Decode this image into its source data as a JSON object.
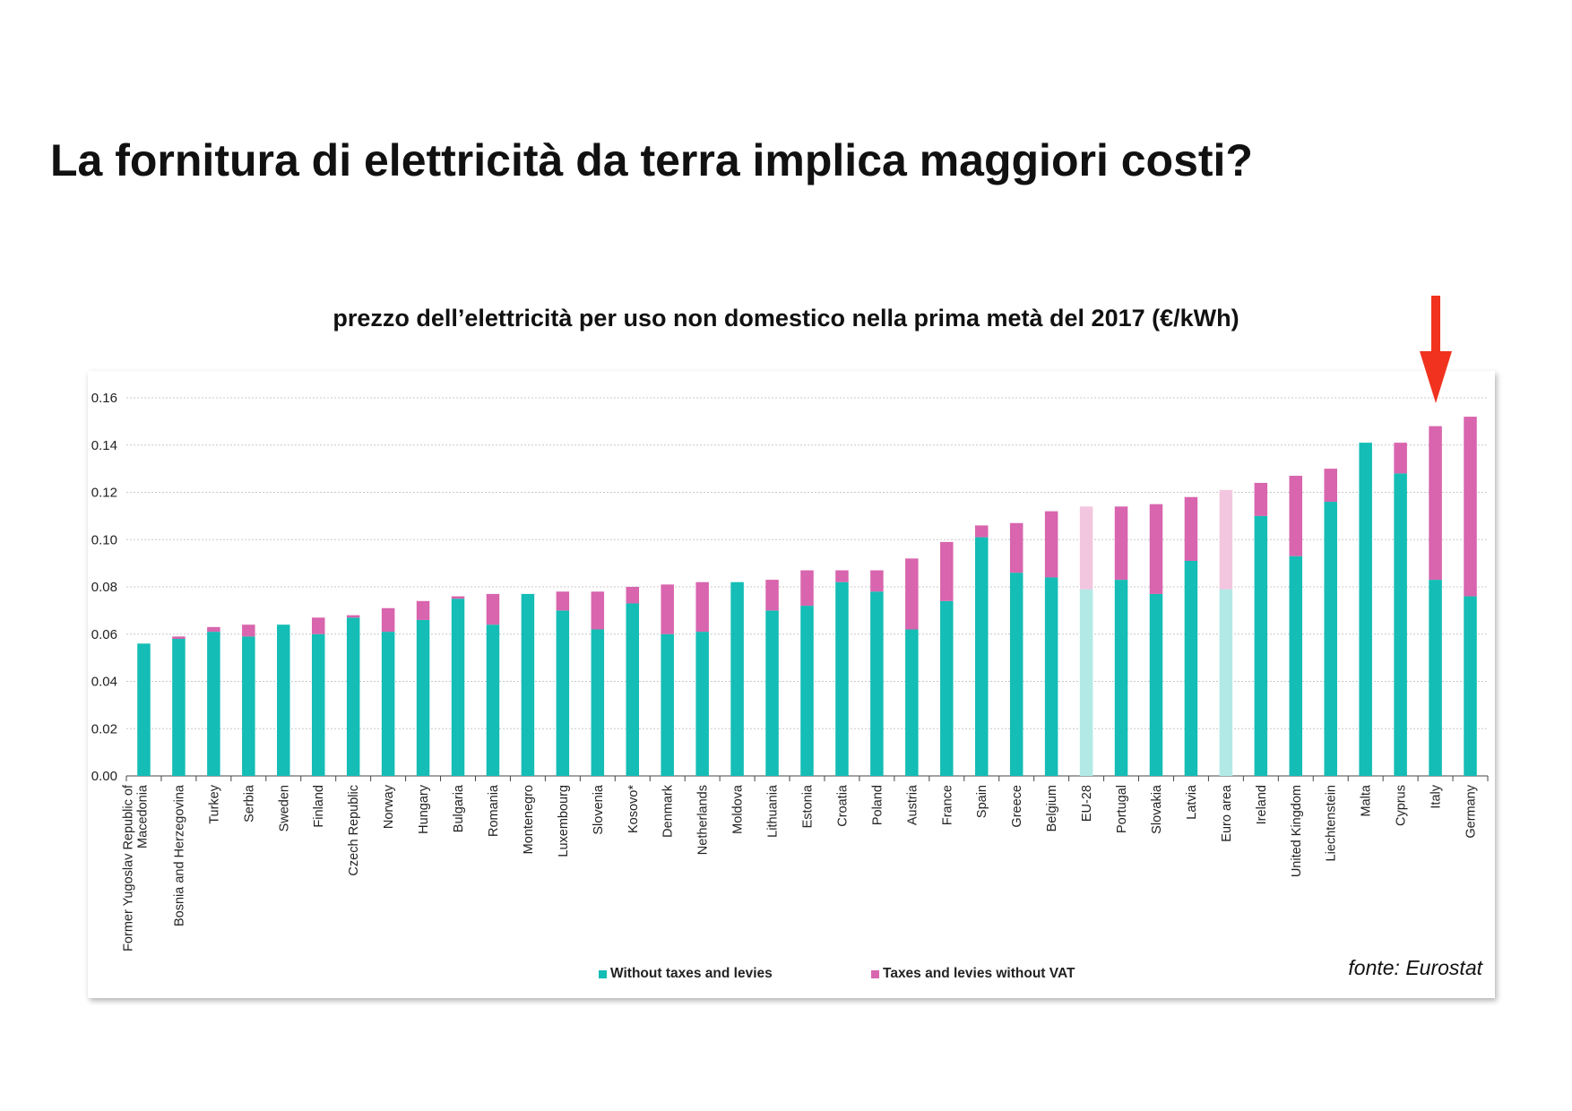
{
  "slide": {
    "title": "La fornitura di elettricità da terra implica maggiori costi?",
    "source": "fonte: Eurostat"
  },
  "colors": {
    "without_taxes": "#14bdb5",
    "taxes": "#d865ad",
    "without_taxes_light": "#b2e9e6",
    "taxes_light": "#f2c6df",
    "arrow": "#f0321e"
  },
  "highlight": {
    "target": "Italy",
    "icon": "down-arrow-icon"
  },
  "chart_data": {
    "type": "bar",
    "stacked": true,
    "title": "prezzo dell’elettricità per uso non domestico nella prima metà del 2017 (€/kWh)",
    "xlabel": "",
    "ylabel": "",
    "ylim": [
      0,
      0.16
    ],
    "yticks": [
      "0.00",
      "0.02",
      "0.04",
      "0.06",
      "0.08",
      "0.10",
      "0.12",
      "0.14",
      "0.16"
    ],
    "grid": true,
    "legend_position": "bottom",
    "categories": [
      "Former Yugoslav Republic of Macedonia",
      "Bosnia and Herzegovina",
      "Turkey",
      "Serbia",
      "Sweden",
      "Finland",
      "Czech Republic",
      "Norway",
      "Hungary",
      "Bulgaria",
      "Romania",
      "Montenegro",
      "Luxembourg",
      "Slovenia",
      "Kosovo*",
      "Denmark",
      "Netherlands",
      "Moldova",
      "Lithuania",
      "Estonia",
      "Croatia",
      "Poland",
      "Austria",
      "France",
      "Spain",
      "Greece",
      "Belgium",
      "EU-28",
      "Portugal",
      "Slovakia",
      "Latvia",
      "Euro area",
      "Ireland",
      "United Kingdom",
      "Liechtenstein",
      "Malta",
      "Cyprus",
      "Italy",
      "Germany"
    ],
    "aggregates": [
      "EU-28",
      "Euro area"
    ],
    "series": [
      {
        "name": "Without taxes and levies",
        "values": [
          0.056,
          0.058,
          0.061,
          0.059,
          0.064,
          0.06,
          0.067,
          0.061,
          0.066,
          0.075,
          0.064,
          0.077,
          0.07,
          0.062,
          0.073,
          0.06,
          0.061,
          0.082,
          0.07,
          0.072,
          0.082,
          0.078,
          0.062,
          0.074,
          0.101,
          0.086,
          0.084,
          0.079,
          0.083,
          0.077,
          0.091,
          0.079,
          0.11,
          0.093,
          0.116,
          0.141,
          0.128,
          0.083,
          0.076
        ]
      },
      {
        "name": "Taxes and levies without VAT",
        "values": [
          0.0,
          0.001,
          0.002,
          0.005,
          0.0,
          0.007,
          0.001,
          0.01,
          0.008,
          0.001,
          0.013,
          0.0,
          0.008,
          0.016,
          0.007,
          0.021,
          0.021,
          0.0,
          0.013,
          0.015,
          0.005,
          0.009,
          0.03,
          0.025,
          0.005,
          0.021,
          0.028,
          0.035,
          0.031,
          0.038,
          0.027,
          0.042,
          0.014,
          0.034,
          0.014,
          0.0,
          0.013,
          0.065,
          0.076
        ]
      }
    ]
  }
}
